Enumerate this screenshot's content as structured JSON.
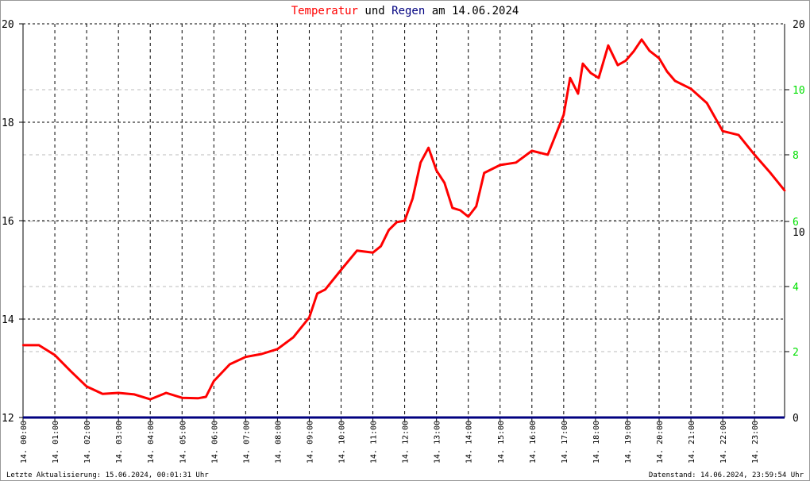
{
  "title": {
    "part1": "Temperatur",
    "part2": " und ",
    "part3": "Regen",
    "part4": " am 14.06.2024"
  },
  "footer": {
    "left": "Letzte Aktualisierung: 15.06.2024, 00:01:31 Uhr",
    "right": "Datenstand: 14.06.2024, 23:59:54 Uhr"
  },
  "colors": {
    "temperature": "#ff0000",
    "rain": "#000080",
    "rain_axis": "#00e000",
    "title_rain": "#000080"
  },
  "chart_data": {
    "type": "line",
    "title": "Temperatur und Regen am 14.06.2024",
    "x_tick_labels": [
      "14. 00:00",
      "14. 01:00",
      "14. 02:00",
      "14. 03:00",
      "14. 04:00",
      "14. 05:00",
      "14. 06:00",
      "14. 07:00",
      "14. 08:00",
      "14. 09:00",
      "14. 10:00",
      "14. 11:00",
      "14. 12:00",
      "14. 13:00",
      "14. 14:00",
      "14. 15:00",
      "14. 16:00",
      "14. 17:00",
      "14. 18:00",
      "14. 19:00",
      "14. 20:00",
      "14. 21:00",
      "14. 22:00",
      "14. 23:00"
    ],
    "xlim_hours": [
      0,
      24
    ],
    "y_left": {
      "ylim": [
        12,
        20
      ],
      "ticks": [
        "12",
        "14",
        "16",
        "18",
        "20"
      ]
    },
    "y_right": {
      "ylim": [
        0,
        20
      ],
      "ticks": [
        "0",
        "10",
        "20"
      ]
    },
    "y_right_rain": {
      "ticks": [
        "2",
        "4",
        "6",
        "8",
        "10"
      ]
    },
    "grid": true,
    "series": [
      {
        "name": "Temperatur",
        "color": "#ff0000",
        "x_hours": [
          0,
          0.5,
          1,
          1.5,
          2,
          2.5,
          3,
          3.5,
          4,
          4.5,
          5,
          5.5,
          5.75,
          6,
          6.5,
          7,
          7.5,
          8,
          8.5,
          9,
          9.25,
          9.5,
          10,
          10.5,
          11,
          11.25,
          11.5,
          11.75,
          12,
          12.25,
          12.5,
          12.75,
          13,
          13.25,
          13.5,
          13.75,
          14,
          14.25,
          14.5,
          15,
          15.5,
          16,
          16.5,
          17,
          17.2,
          17.45,
          17.6,
          17.85,
          18.1,
          18.4,
          18.7,
          18.95,
          19.2,
          19.45,
          19.7,
          20,
          20.25,
          20.5,
          21,
          21.5,
          22,
          22.5,
          23,
          23.5,
          23.95
        ],
        "values": [
          13.47,
          13.47,
          13.27,
          12.94,
          12.63,
          12.48,
          12.5,
          12.47,
          12.37,
          12.5,
          12.4,
          12.39,
          12.42,
          12.74,
          13.08,
          13.23,
          13.29,
          13.39,
          13.63,
          14.03,
          14.52,
          14.6,
          15.0,
          15.39,
          15.35,
          15.48,
          15.81,
          15.97,
          16.0,
          16.45,
          17.18,
          17.48,
          17.02,
          16.77,
          16.26,
          16.21,
          16.08,
          16.29,
          16.97,
          17.13,
          17.18,
          17.42,
          17.34,
          18.15,
          18.9,
          18.58,
          19.19,
          19.0,
          18.9,
          19.56,
          19.16,
          19.25,
          19.44,
          19.68,
          19.45,
          19.3,
          19.03,
          18.84,
          18.68,
          18.39,
          17.82,
          17.74,
          17.34,
          16.97,
          16.61
        ]
      },
      {
        "name": "Regen",
        "color": "#000080",
        "x_hours": [
          0,
          24
        ],
        "values": [
          0,
          0
        ]
      }
    ]
  }
}
